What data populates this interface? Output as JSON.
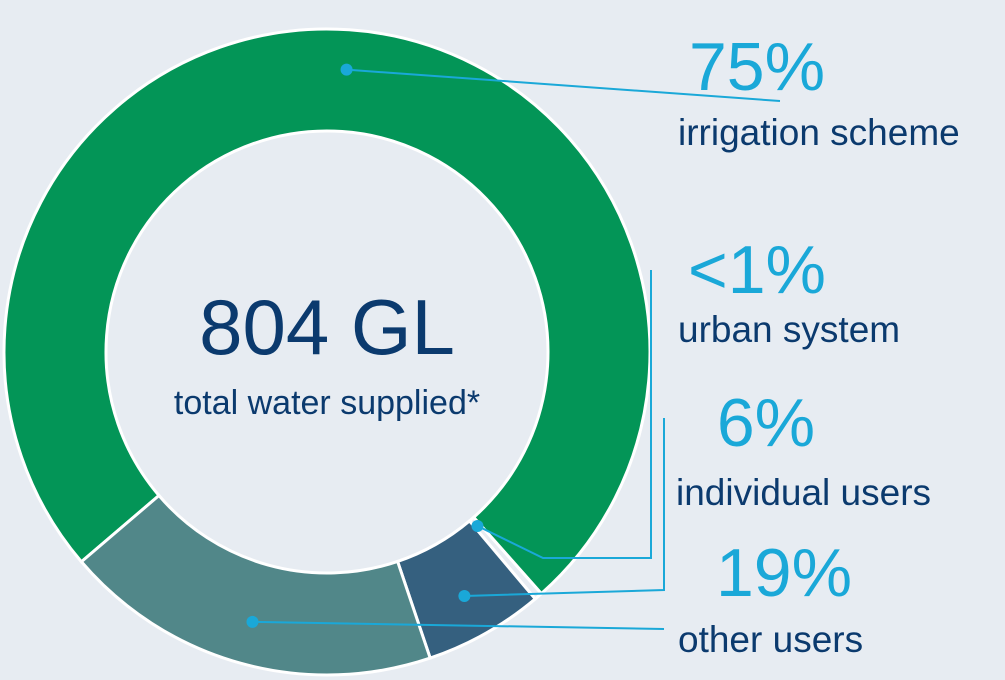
{
  "chart_data": {
    "type": "pie",
    "style": "donut",
    "center": {
      "value": "804 GL",
      "label": "total water supplied*"
    },
    "slices": [
      {
        "key": "irrigation",
        "label": "irrigation scheme",
        "percent_label": "75%",
        "value": 75,
        "color": "#039557"
      },
      {
        "key": "urban",
        "label": "urban system",
        "percent_label": "<1%",
        "value": 0.4,
        "color": "#e7ecf2"
      },
      {
        "key": "individual",
        "label": "individual users",
        "percent_label": "6%",
        "value": 6,
        "color": "#35607f"
      },
      {
        "key": "other",
        "label": "other users",
        "percent_label": "19%",
        "value": 19,
        "color": "#518789"
      }
    ],
    "leader_color": "#1aa8d8",
    "separator_color": "#ffffff"
  }
}
